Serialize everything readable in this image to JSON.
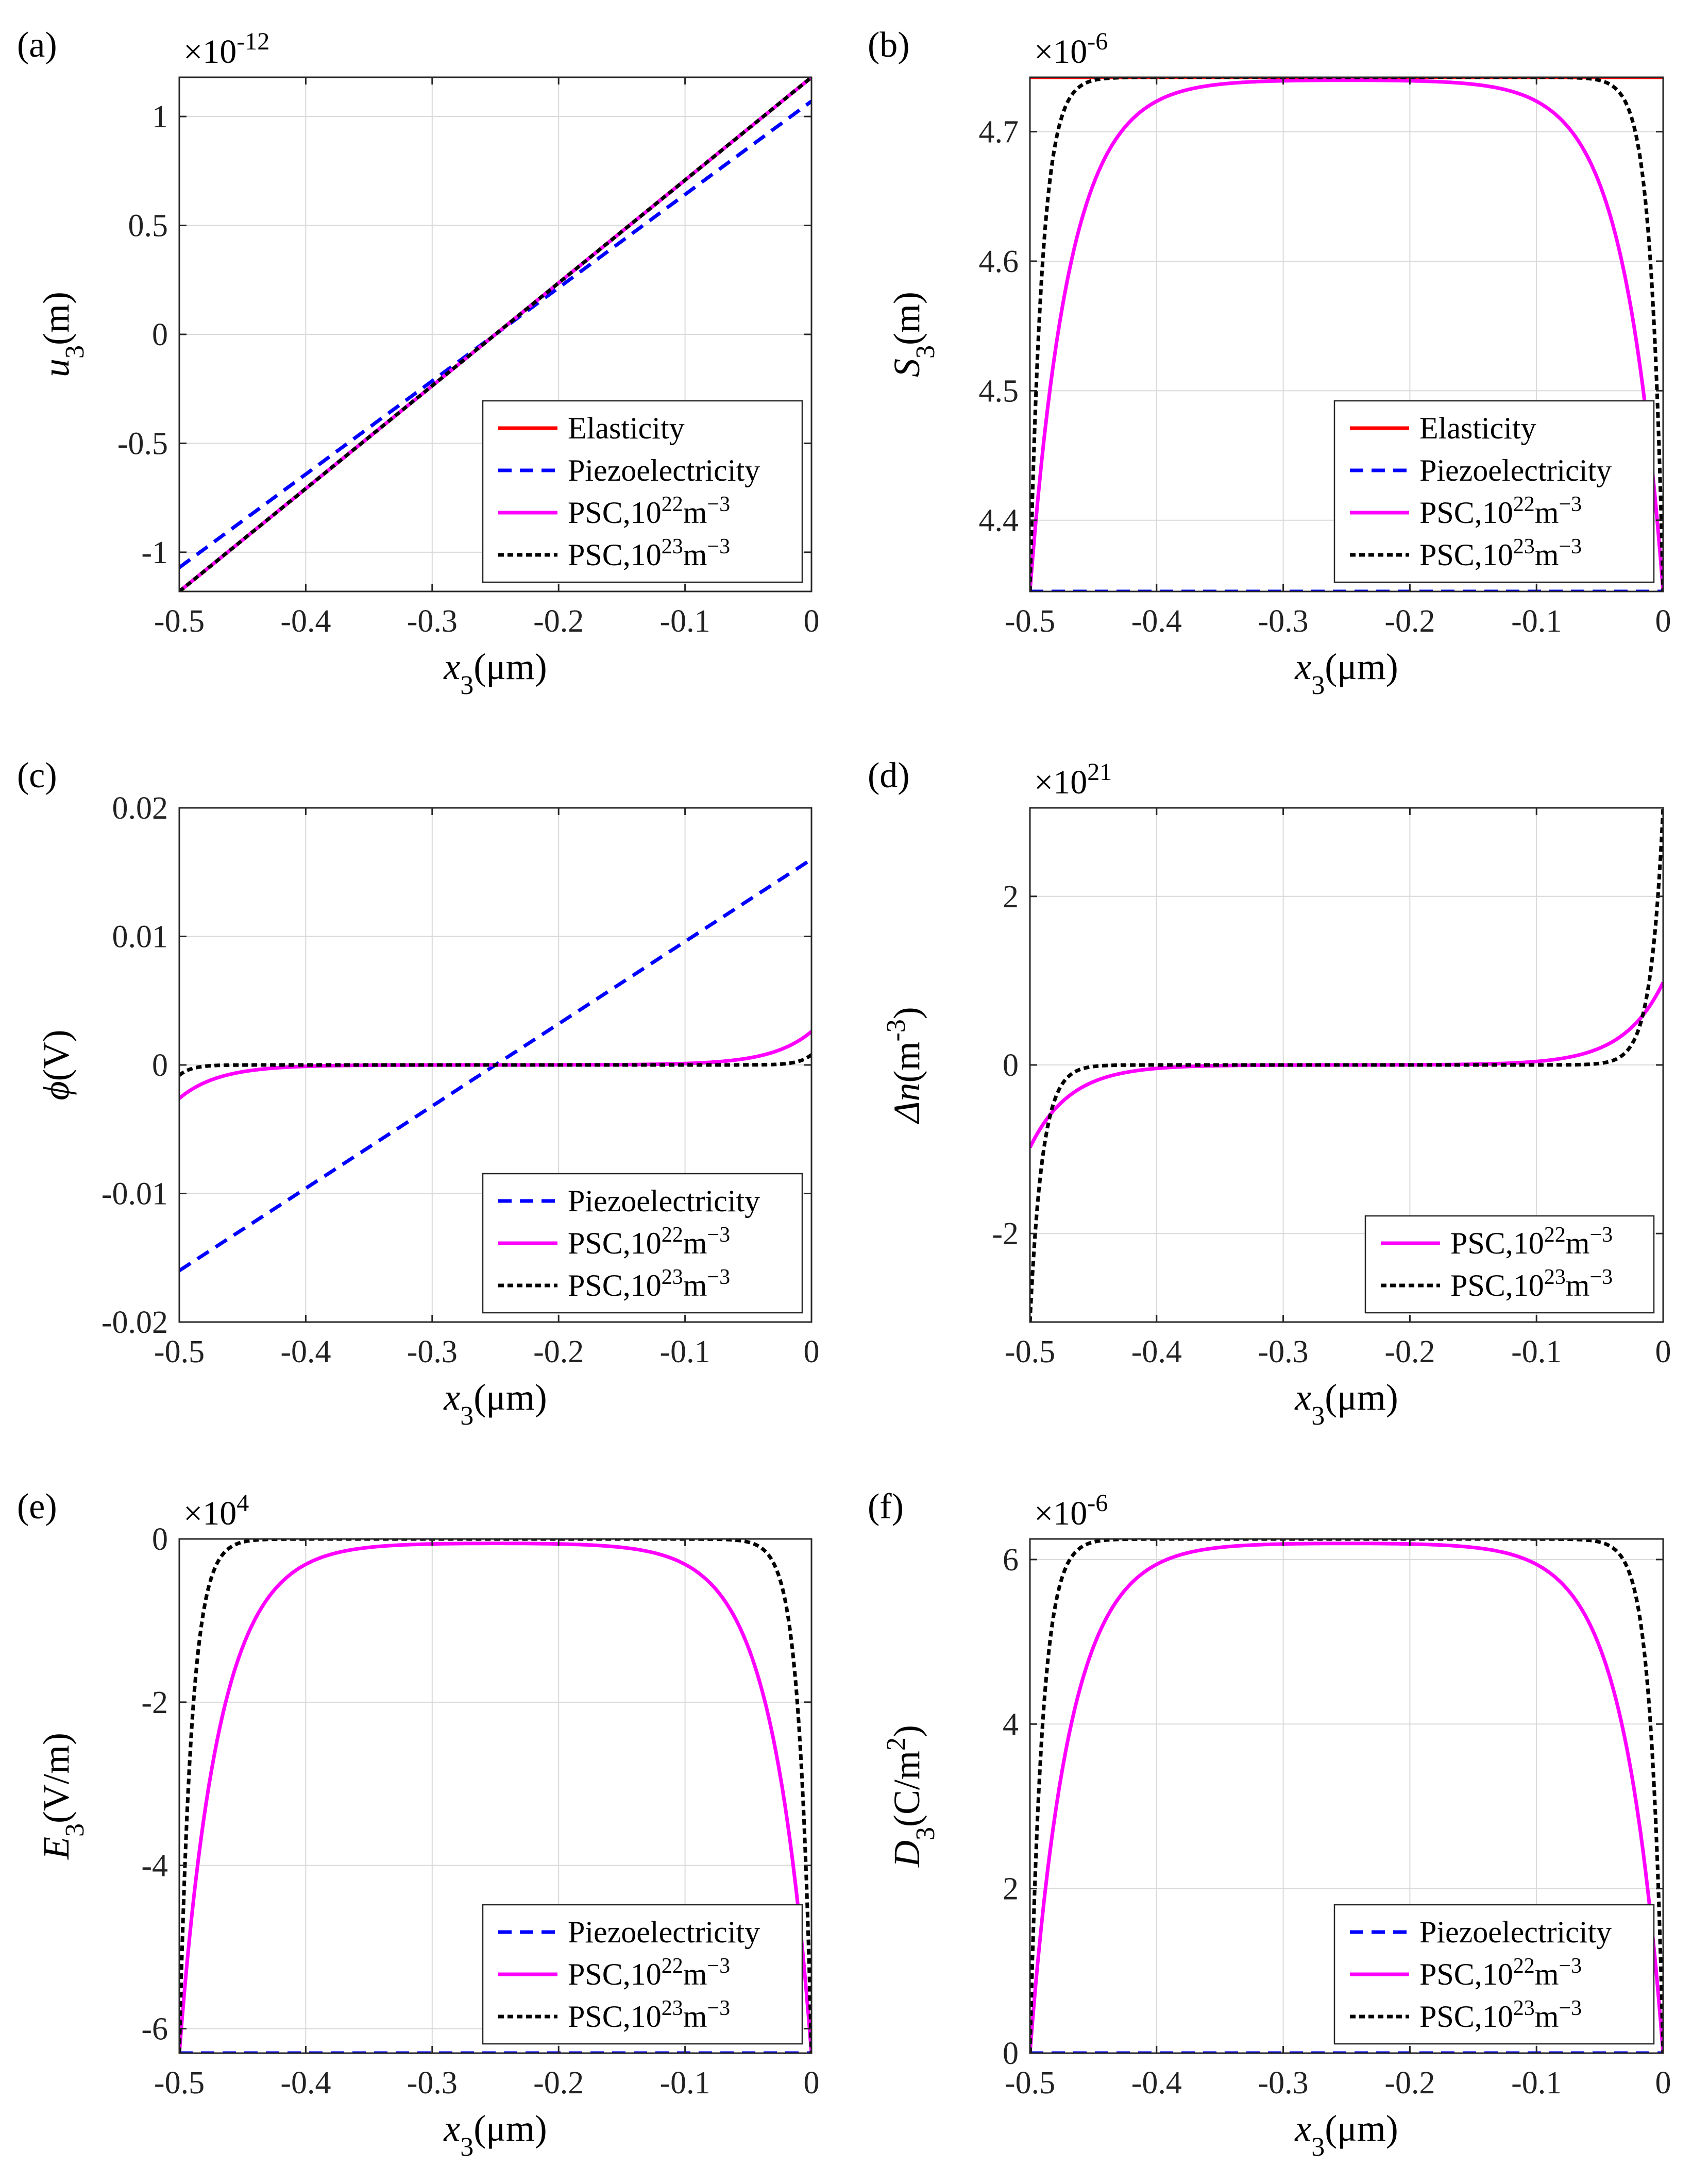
{
  "figure": {
    "x_range": [
      -0.5,
      0
    ],
    "x_ticks": [
      "-0.5",
      "-0.4",
      "-0.3",
      "-0.2",
      "-0.1",
      "0"
    ],
    "series_styles": {
      "Elasticity": {
        "color": "#ff0000",
        "dash": "solid"
      },
      "Piezoelectricity": {
        "color": "#0000ff",
        "dash": "dashed"
      },
      "PSC,10^22": {
        "color": "#ff00ff",
        "dash": "solid"
      },
      "PSC,10^23": {
        "color": "#000000",
        "dash": "dotted"
      }
    }
  },
  "chart_data": [
    {
      "type": "line",
      "panel_label": "(a)",
      "multiplier": {
        "base": "×10",
        "exp": "-12"
      },
      "xlabel": {
        "var": "x",
        "sub": "3",
        "unit": "(μm)"
      },
      "ylabel": {
        "var": "u",
        "sub": "3",
        "sup": "",
        "unit": "(m)"
      },
      "ylim": [
        -1.18,
        1.18
      ],
      "y_ticks": [
        -1,
        -0.5,
        0,
        0.5,
        1
      ],
      "y_tick_labels": [
        "-1",
        "-0.5",
        "0",
        "0.5",
        "1"
      ],
      "legend_pos": "bottom-right",
      "series": [
        {
          "name": "Elasticity",
          "label": "Elasticity",
          "style": "Elasticity",
          "kind": "linear",
          "a": 1.18,
          "b": 0
        },
        {
          "name": "Piezoelectricity",
          "label": "Piezoelectricity",
          "style": "Piezoelectricity",
          "kind": "linear",
          "a": 1.07,
          "b": 0
        },
        {
          "name": "PSC,10^22",
          "label": "PSC,10",
          "sup": "22",
          "tail": "m",
          "tailsup": "−3",
          "style": "PSC,10^22",
          "kind": "linear",
          "a": 1.18,
          "b": 0
        },
        {
          "name": "PSC,10^23",
          "label": "PSC,10",
          "sup": "23",
          "tail": "m",
          "tailsup": "−3",
          "style": "PSC,10^23",
          "kind": "linear",
          "a": 1.18,
          "b": 0
        }
      ]
    },
    {
      "type": "line",
      "panel_label": "(b)",
      "multiplier": {
        "base": "×10",
        "exp": "-6"
      },
      "xlabel": {
        "var": "x",
        "sub": "3",
        "unit": "(μm)"
      },
      "ylabel": {
        "var": "S",
        "sub": "3",
        "sup": "",
        "unit": "(m)"
      },
      "ylim": [
        4.345,
        4.742
      ],
      "y_ticks": [
        4.4,
        4.5,
        4.6,
        4.7
      ],
      "y_tick_labels": [
        "4.4",
        "4.5",
        "4.6",
        "4.7"
      ],
      "legend_pos": "bottom-right",
      "series": [
        {
          "name": "Elasticity",
          "label": "Elasticity",
          "style": "Elasticity",
          "kind": "const",
          "v": 4.742
        },
        {
          "name": "Piezoelectricity",
          "label": "Piezoelectricity",
          "style": "Piezoelectricity",
          "kind": "const",
          "v": 4.345
        },
        {
          "name": "PSC,10^22",
          "label": "PSC,10",
          "sup": "22",
          "tail": "m",
          "tailsup": "−3",
          "style": "PSC,10^22",
          "kind": "dome",
          "peak": 4.74,
          "edge": 4.345,
          "L": 0.0315
        },
        {
          "name": "PSC,10^23",
          "label": "PSC,10",
          "sup": "23",
          "tail": "m",
          "tailsup": "−3",
          "style": "PSC,10^23",
          "kind": "dome",
          "peak": 4.742,
          "edge": 4.345,
          "L": 0.0098
        }
      ]
    },
    {
      "type": "line",
      "panel_label": "(c)",
      "multiplier": null,
      "xlabel": {
        "var": "x",
        "sub": "3",
        "unit": "(μm)"
      },
      "ylabel": {
        "var": "ϕ",
        "sub": "",
        "sup": "",
        "unit": "(V)"
      },
      "ylim": [
        -0.02,
        0.02
      ],
      "y_ticks": [
        -0.02,
        -0.01,
        0,
        0.01,
        0.02
      ],
      "y_tick_labels": [
        "-0.02",
        "-0.01",
        "0",
        "0.01",
        "0.02"
      ],
      "legend_pos": "bottom-right",
      "series": [
        {
          "name": "Piezoelectricity",
          "label": "Piezoelectricity",
          "style": "Piezoelectricity",
          "kind": "linear",
          "a": 0.016,
          "b": 0
        },
        {
          "name": "PSC,10^22",
          "label": "PSC,10",
          "sup": "22",
          "tail": "m",
          "tailsup": "−3",
          "style": "PSC,10^22",
          "kind": "sinh",
          "A": 0.0026,
          "L": 0.0315
        },
        {
          "name": "PSC,10^23",
          "label": "PSC,10",
          "sup": "23",
          "tail": "m",
          "tailsup": "−3",
          "style": "PSC,10^23",
          "kind": "sinh",
          "A": 0.0008,
          "L": 0.0098
        }
      ]
    },
    {
      "type": "line",
      "panel_label": "(d)",
      "multiplier": {
        "base": "×10",
        "exp": "21"
      },
      "xlabel": {
        "var": "x",
        "sub": "3",
        "unit": "(μm)"
      },
      "ylabel": {
        "var": "Δn",
        "sub": "",
        "sup": "-3",
        "unit": "(m",
        "unit_end": ")"
      },
      "ylim": [
        -3.05,
        3.05
      ],
      "y_ticks": [
        -2,
        0,
        2
      ],
      "y_tick_labels": [
        "-2",
        "0",
        "2"
      ],
      "legend_pos": "bottom-right",
      "series": [
        {
          "name": "PSC,10^22",
          "label": "PSC,10",
          "sup": "22",
          "tail": "m",
          "tailsup": "−3",
          "style": "PSC,10^22",
          "kind": "sinh",
          "A": 0.98,
          "L": 0.0315
        },
        {
          "name": "PSC,10^23",
          "label": "PSC,10",
          "sup": "23",
          "tail": "m",
          "tailsup": "−3",
          "style": "PSC,10^23",
          "kind": "sinh",
          "A": 3.05,
          "L": 0.0098
        }
      ]
    },
    {
      "type": "line",
      "panel_label": "(e)",
      "multiplier": {
        "base": "×10",
        "exp": "4"
      },
      "xlabel": {
        "var": "x",
        "sub": "3",
        "unit": "(μm)"
      },
      "ylabel": {
        "var": "E",
        "sub": "3",
        "sup": "",
        "unit": "(V/m)"
      },
      "ylim": [
        -6.3,
        0
      ],
      "y_ticks": [
        -6,
        -4,
        -2,
        0
      ],
      "y_tick_labels": [
        "-6",
        "-4",
        "-2",
        "0"
      ],
      "legend_pos": "bottom-right",
      "series": [
        {
          "name": "Piezoelectricity",
          "label": "Piezoelectricity",
          "style": "Piezoelectricity",
          "kind": "const",
          "v": -6.3
        },
        {
          "name": "PSC,10^22",
          "label": "PSC,10",
          "sup": "22",
          "tail": "m",
          "tailsup": "−3",
          "style": "PSC,10^22",
          "kind": "dome",
          "peak": -0.05,
          "edge": -6.3,
          "L": 0.0315
        },
        {
          "name": "PSC,10^23",
          "label": "PSC,10",
          "sup": "23",
          "tail": "m",
          "tailsup": "−3",
          "style": "PSC,10^23",
          "kind": "dome",
          "peak": 0,
          "edge": -6.3,
          "L": 0.0098
        }
      ]
    },
    {
      "type": "line",
      "panel_label": "(f)",
      "multiplier": {
        "base": "×10",
        "exp": "-6"
      },
      "xlabel": {
        "var": "x",
        "sub": "3",
        "unit": "(μm)"
      },
      "ylabel": {
        "var": "D",
        "sub": "3",
        "sup": "2",
        "unit": "(C/m",
        "unit_end": ")"
      },
      "ylim": [
        0,
        6.25
      ],
      "y_ticks": [
        0,
        2,
        4,
        6
      ],
      "y_tick_labels": [
        "0",
        "2",
        "4",
        "6"
      ],
      "legend_pos": "bottom-right",
      "series": [
        {
          "name": "Piezoelectricity",
          "label": "Piezoelectricity",
          "style": "Piezoelectricity",
          "kind": "const",
          "v": 0
        },
        {
          "name": "PSC,10^22",
          "label": "PSC,10",
          "sup": "22",
          "tail": "m",
          "tailsup": "−3",
          "style": "PSC,10^22",
          "kind": "dome",
          "peak": 6.2,
          "edge": 0,
          "L": 0.0315
        },
        {
          "name": "PSC,10^23",
          "label": "PSC,10",
          "sup": "23",
          "tail": "m",
          "tailsup": "−3",
          "style": "PSC,10^23",
          "kind": "dome",
          "peak": 6.25,
          "edge": 0,
          "L": 0.0098
        }
      ]
    }
  ]
}
